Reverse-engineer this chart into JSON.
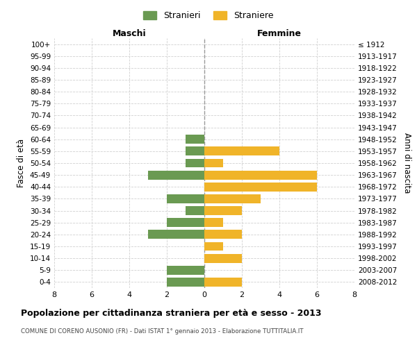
{
  "age_groups": [
    "100+",
    "95-99",
    "90-94",
    "85-89",
    "80-84",
    "75-79",
    "70-74",
    "65-69",
    "60-64",
    "55-59",
    "50-54",
    "45-49",
    "40-44",
    "35-39",
    "30-34",
    "25-29",
    "20-24",
    "15-19",
    "10-14",
    "5-9",
    "0-4"
  ],
  "birth_years": [
    "≤ 1912",
    "1913-1917",
    "1918-1922",
    "1923-1927",
    "1928-1932",
    "1933-1937",
    "1938-1942",
    "1943-1947",
    "1948-1952",
    "1953-1957",
    "1958-1962",
    "1963-1967",
    "1968-1972",
    "1973-1977",
    "1978-1982",
    "1983-1987",
    "1988-1992",
    "1993-1997",
    "1998-2002",
    "2003-2007",
    "2008-2012"
  ],
  "stranieri": [
    0,
    0,
    0,
    0,
    0,
    0,
    0,
    0,
    1,
    1,
    1,
    3,
    0,
    2,
    1,
    2,
    3,
    0,
    0,
    2,
    2
  ],
  "straniere": [
    0,
    0,
    0,
    0,
    0,
    0,
    0,
    0,
    0,
    4,
    1,
    6,
    6,
    3,
    2,
    1,
    2,
    1,
    2,
    0,
    2
  ],
  "color_stranieri": "#6a9a52",
  "color_straniere": "#f0b429",
  "xlim": 8,
  "title": "Popolazione per cittadinanza straniera per età e sesso - 2013",
  "subtitle": "COMUNE DI CORENO AUSONIO (FR) - Dati ISTAT 1° gennaio 2013 - Elaborazione TUTTITALIA.IT",
  "ylabel_left": "Fasce di età",
  "ylabel_right": "Anni di nascita",
  "legend_stranieri": "Stranieri",
  "legend_straniere": "Straniere",
  "label_maschi": "Maschi",
  "label_femmine": "Femmine",
  "bg_color": "#ffffff",
  "grid_color": "#d0d0d0",
  "bar_height": 0.75
}
